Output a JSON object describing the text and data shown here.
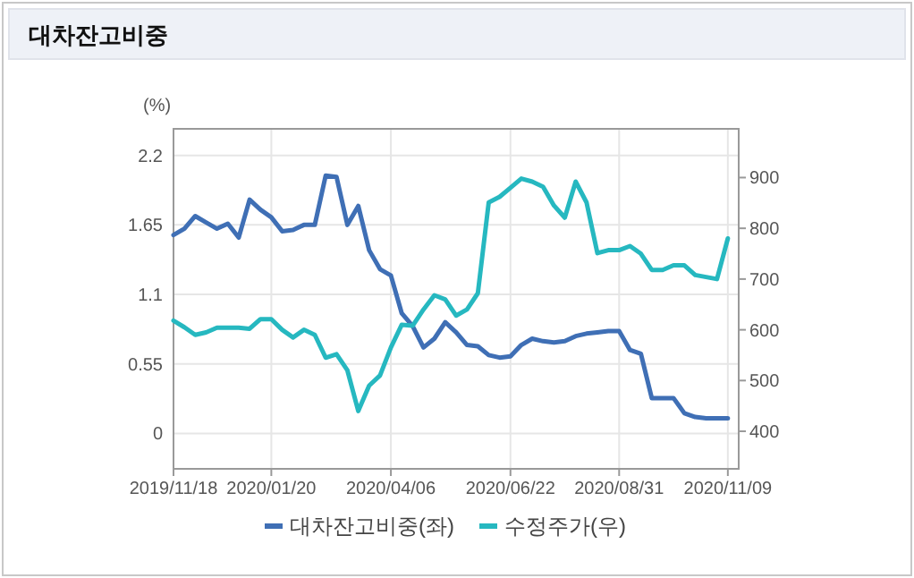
{
  "chart_data": {
    "type": "line",
    "title": "대차잔고비중",
    "ylabel": "(%)",
    "x": [
      "2019-11-18",
      "2019-11-25",
      "2019-12-02",
      "2019-12-09",
      "2019-12-16",
      "2019-12-23",
      "2019-12-30",
      "2020-01-06",
      "2020-01-13",
      "2020-01-20",
      "2020-01-27",
      "2020-02-03",
      "2020-02-10",
      "2020-02-17",
      "2020-02-24",
      "2020-03-02",
      "2020-03-09",
      "2020-03-16",
      "2020-03-23",
      "2020-03-30",
      "2020-04-06",
      "2020-04-13",
      "2020-04-20",
      "2020-04-27",
      "2020-05-04",
      "2020-05-11",
      "2020-05-18",
      "2020-05-25",
      "2020-06-01",
      "2020-06-08",
      "2020-06-15",
      "2020-06-22",
      "2020-06-29",
      "2020-07-06",
      "2020-07-13",
      "2020-07-20",
      "2020-07-27",
      "2020-08-03",
      "2020-08-10",
      "2020-08-17",
      "2020-08-24",
      "2020-08-31",
      "2020-09-07",
      "2020-09-14",
      "2020-09-21",
      "2020-09-28",
      "2020-10-05",
      "2020-10-12",
      "2020-10-19",
      "2020-10-26",
      "2020-11-02",
      "2020-11-09"
    ],
    "series": [
      {
        "name": "대차잔고비중(좌)",
        "color": "#3f6fb5",
        "values": [
          1.57,
          1.62,
          1.72,
          1.67,
          1.62,
          1.66,
          1.55,
          1.85,
          1.77,
          1.71,
          1.6,
          1.61,
          1.65,
          1.65,
          2.04,
          2.03,
          1.65,
          1.8,
          1.45,
          1.3,
          1.25,
          0.95,
          0.85,
          0.68,
          0.75,
          0.88,
          0.8,
          0.7,
          0.69,
          0.62,
          0.6,
          0.61,
          0.7,
          0.75,
          0.73,
          0.72,
          0.73,
          0.77,
          0.79,
          0.8,
          0.81,
          0.81,
          0.66,
          0.63,
          0.28,
          0.28,
          0.28,
          0.16,
          0.13,
          0.12,
          0.12,
          0.12
        ]
      },
      {
        "name": "수정주가(우)",
        "color": "#26b8c0",
        "axis": "y2",
        "values": [
          618,
          605,
          590,
          595,
          604,
          604,
          604,
          602,
          621,
          621,
          600,
          585,
          600,
          590,
          545,
          552,
          520,
          440,
          490,
          510,
          565,
          610,
          608,
          640,
          668,
          660,
          628,
          640,
          672,
          851,
          862,
          880,
          898,
          892,
          882,
          845,
          821,
          892,
          851,
          751,
          757,
          757,
          765,
          750,
          718,
          718,
          727,
          727,
          708,
          704,
          700,
          780
        ]
      }
    ],
    "xlim": [
      "2019-11-18",
      "2020-11-16"
    ],
    "xticks": [
      {
        "value": "2019-11-18",
        "label": "2019/11/18"
      },
      {
        "value": "2020-01-20",
        "label": "2020/01/20"
      },
      {
        "value": "2020-04-06",
        "label": "2020/04/06"
      },
      {
        "value": "2020-06-22",
        "label": "2020/06/22"
      },
      {
        "value": "2020-08-31",
        "label": "2020/08/31"
      },
      {
        "value": "2020-11-09",
        "label": "2020/11/09"
      }
    ],
    "ylim": [
      -0.28,
      2.41
    ],
    "yticks": [
      0,
      0.55,
      1.1,
      1.65,
      2.2
    ],
    "y2lim": [
      326,
      996
    ],
    "y2ticks": [
      400,
      500,
      600,
      700,
      800,
      900
    ],
    "grid": true,
    "legend": "bottom"
  }
}
